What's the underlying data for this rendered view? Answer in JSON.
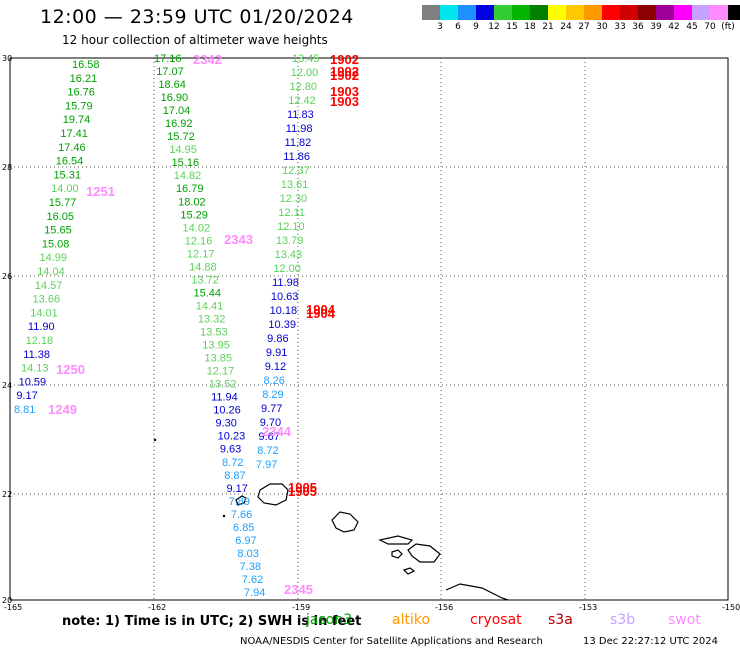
{
  "title": "12:00 — 23:59 UTC 01/20/2024",
  "subtitle": "12 hour collection of altimeter wave heights",
  "legend": {
    "colors": [
      "#7f7f7f",
      "#00e5ee",
      "#1e90ff",
      "#0000e0",
      "#32cd32",
      "#00b400",
      "#007f00",
      "#ffff00",
      "#ffc800",
      "#ff9900",
      "#ff0000",
      "#d00000",
      "#8b0000",
      "#a0009a",
      "#ff00ff",
      "#c8a0ff",
      "#ff8cff",
      "#000000"
    ],
    "labels": [
      "3",
      "6",
      "9",
      "12",
      "15",
      "18",
      "21",
      "24",
      "27",
      "30",
      "33",
      "36",
      "39",
      "42",
      "45",
      "70",
      "(ft)"
    ]
  },
  "axes": {
    "lat_ticks": [
      "30",
      "28",
      "26",
      "24",
      "22",
      "20"
    ],
    "lon_ticks": [
      "-165",
      "-162",
      "-159",
      "-156",
      "-153",
      "-150"
    ]
  },
  "note": "note:  1) Time is in UTC;  2) SWH is in feet",
  "satellites": [
    {
      "name": "jason3",
      "color": "#00a000"
    },
    {
      "name": "altiko",
      "color": "#ff9900"
    },
    {
      "name": "cryosat",
      "color": "#ff0000"
    },
    {
      "name": "s3a",
      "color": "#b00000"
    },
    {
      "name": "s3b",
      "color": "#c8a0ff"
    },
    {
      "name": "swot",
      "color": "#ff8cff"
    }
  ],
  "credit": "NOAA/NESDIS Center for Satellite Applications and Research",
  "timestamp": "13 Dec 22:27:12 UTC 2024",
  "tracks": {
    "west": {
      "color": "#32cd32",
      "values": [
        "16.58",
        "16.21",
        "16.76",
        "15.79",
        "19.74",
        "17.41",
        "17.46",
        "16.54",
        "15.31",
        "14.00",
        "15.77",
        "16.05",
        "15.65",
        "15.08",
        "14.99",
        "14.04",
        "14.57",
        "13.66",
        "14.01",
        "11.90",
        "12.18",
        "11.38",
        "14.13",
        "10.59",
        "9.17",
        "8.81"
      ]
    },
    "central": {
      "color": "#32cd32",
      "values": [
        "17.16",
        "17.07",
        "18.64",
        "16.90",
        "17.04",
        "16.92",
        "15.72",
        "14.95",
        "15.16",
        "14.82",
        "16.79",
        "18.02",
        "15.29",
        "14.02",
        "12.16",
        "12.17",
        "14.88",
        "13.72",
        "15.44",
        "14.41",
        "13.32",
        "13.53",
        "13.95",
        "13.85",
        "12.17",
        "13.52",
        "11.94",
        "10.26",
        "9.30",
        "10.23",
        "9.63",
        "8.72",
        "8.87",
        "9.17",
        "7.89",
        "7.66",
        "6.85",
        "6.97",
        "8.03",
        "7.38",
        "7.62",
        "7.94"
      ]
    },
    "east": {
      "color": "#32cd32",
      "values": [
        "13.45",
        "12.00",
        "12.80",
        "12.42",
        "11.83",
        "11.98",
        "11.82",
        "11.86",
        "12.37",
        "13.61",
        "12.30",
        "12.11",
        "12.10",
        "13.79",
        "13.43",
        "12.00",
        "11.98",
        "10.63",
        "10.18",
        "10.39",
        "9.86",
        "9.91",
        "9.12",
        "8.26",
        "8.29",
        "9.77",
        "9.70",
        "9.67",
        "8.72",
        "7.97"
      ]
    },
    "labels": [
      {
        "text": "2342",
        "color": "#ff8cff"
      },
      {
        "text": "1902",
        "color": "#ff0000"
      },
      {
        "text": "1902",
        "color": "#ff0000"
      },
      {
        "text": "1902",
        "color": "#ff0000"
      },
      {
        "text": "1903",
        "color": "#ff0000"
      },
      {
        "text": "1903",
        "color": "#ff0000"
      },
      {
        "text": "1251",
        "color": "#ff8cff"
      },
      {
        "text": "2343",
        "color": "#ff8cff"
      },
      {
        "text": "1904",
        "color": "#ff0000"
      },
      {
        "text": "1904",
        "color": "#ff0000"
      },
      {
        "text": "1250",
        "color": "#ff8cff"
      },
      {
        "text": "1249",
        "color": "#ff8cff"
      },
      {
        "text": "2344",
        "color": "#ff8cff"
      },
      {
        "text": "1905",
        "color": "#ff0000"
      },
      {
        "text": "1905",
        "color": "#ff0000"
      },
      {
        "text": "2345",
        "color": "#ff8cff"
      }
    ]
  }
}
